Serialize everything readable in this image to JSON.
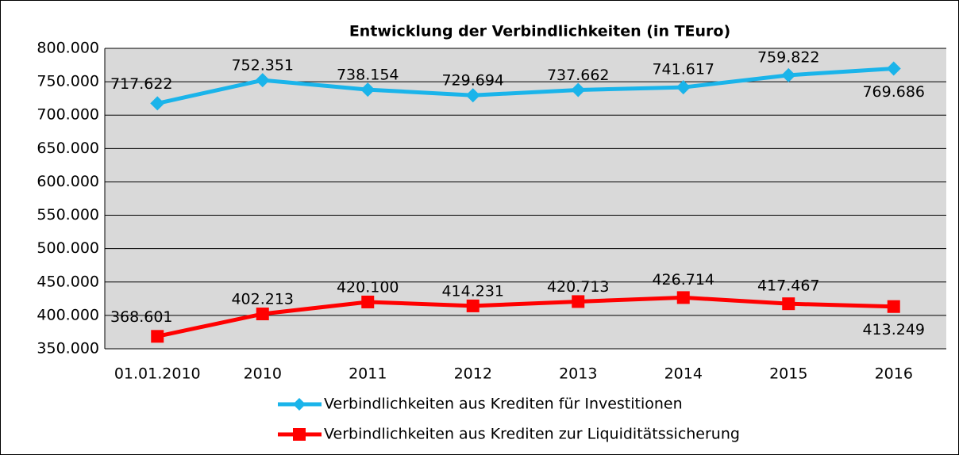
{
  "chart_data": {
    "type": "line",
    "title": "Entwicklung der Verbindlichkeiten (in TEuro)",
    "categories": [
      "01.01.2010",
      "2010",
      "2011",
      "2012",
      "2013",
      "2014",
      "2015",
      "2016"
    ],
    "series": [
      {
        "name": "Verbindlichkeiten aus Krediten für Investitionen",
        "color": "#1ab4ea",
        "marker": "diamond",
        "values": [
          717622,
          752351,
          738154,
          729694,
          737662,
          741617,
          759822,
          769686
        ],
        "value_labels": [
          "717.622",
          "752.351",
          "738.154",
          "729.694",
          "737.662",
          "741.617",
          "759.822",
          "769.686"
        ]
      },
      {
        "name": "Verbindlichkeiten aus Krediten zur Liquiditätssicherung",
        "color": "#ff0000",
        "marker": "square",
        "values": [
          368601,
          402213,
          420100,
          414231,
          420713,
          426714,
          417467,
          413249
        ],
        "value_labels": [
          "368.601",
          "402.213",
          "420.100",
          "414.231",
          "420.713",
          "426.714",
          "417.467",
          "413.249"
        ]
      }
    ],
    "ylim": [
      350000,
      800000
    ],
    "yticks": [
      {
        "value": 350000,
        "label": "350.000"
      },
      {
        "value": 400000,
        "label": "400.000"
      },
      {
        "value": 450000,
        "label": "450.000"
      },
      {
        "value": 500000,
        "label": "500.000"
      },
      {
        "value": 550000,
        "label": "550.000"
      },
      {
        "value": 600000,
        "label": "600.000"
      },
      {
        "value": 650000,
        "label": "650.000"
      },
      {
        "value": 700000,
        "label": "700.000"
      },
      {
        "value": 750000,
        "label": "750.000"
      },
      {
        "value": 800000,
        "label": "800.000"
      }
    ],
    "grid": true,
    "legend": "bottom"
  }
}
